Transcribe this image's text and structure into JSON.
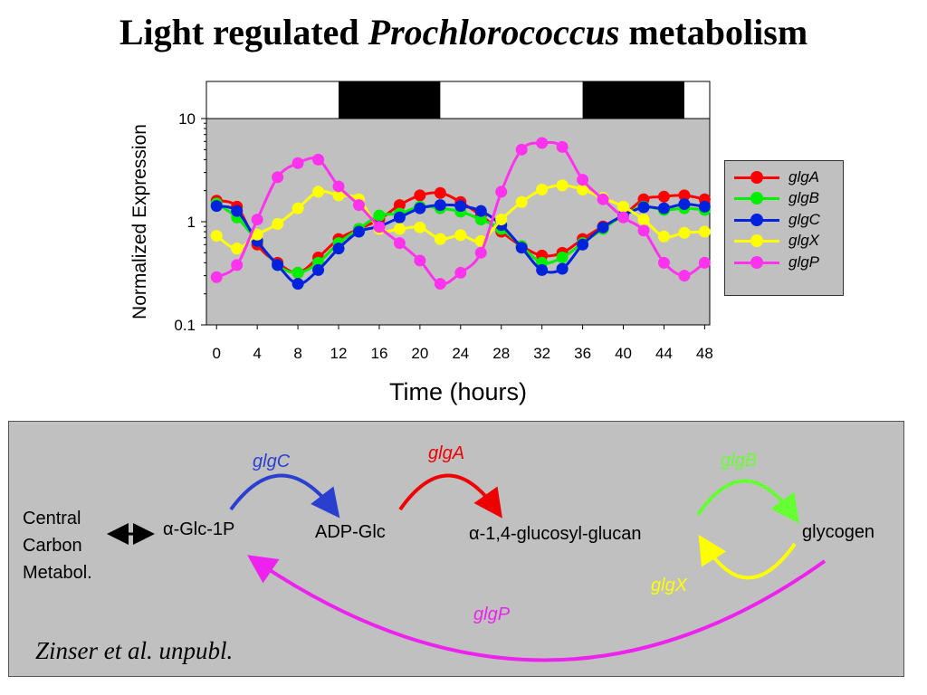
{
  "slide": {
    "title_prefix": "Light regulated ",
    "title_italic": "Prochlorococcus",
    "title_suffix": " metabolism",
    "citation": "Zinser et al. unpubl."
  },
  "chart_data": {
    "type": "line",
    "xlabel": "Time (hours)",
    "ylabel": "Normalized Expression",
    "yscale": "log",
    "ylim": [
      0.1,
      10
    ],
    "xlim": [
      -1,
      48.5
    ],
    "xticks": [
      "0",
      "4",
      "8",
      "12",
      "16",
      "20",
      "24",
      "28",
      "32",
      "36",
      "40",
      "44",
      "48"
    ],
    "yticks": [
      "0.1",
      "1",
      "10"
    ],
    "light_dark_bar": {
      "dark_intervals": [
        [
          12,
          22
        ],
        [
          36,
          46
        ]
      ]
    },
    "legend_position": "right",
    "x": [
      0,
      2,
      4,
      6,
      8,
      10,
      12,
      14,
      16,
      18,
      20,
      22,
      24,
      26,
      28,
      30,
      32,
      34,
      36,
      38,
      40,
      42,
      44,
      46,
      48
    ],
    "series": [
      {
        "name": "glgA",
        "color": "#ff0000",
        "values": [
          1.6,
          1.4,
          0.6,
          0.4,
          0.32,
          0.45,
          0.68,
          0.85,
          1.05,
          1.45,
          1.8,
          1.9,
          1.55,
          1.15,
          0.8,
          0.58,
          0.47,
          0.5,
          0.68,
          0.9,
          1.15,
          1.65,
          1.75,
          1.8,
          1.65
        ]
      },
      {
        "name": "glgB",
        "color": "#00ee00",
        "values": [
          1.5,
          1.1,
          0.65,
          0.38,
          0.32,
          0.4,
          0.62,
          0.85,
          1.15,
          1.2,
          1.4,
          1.35,
          1.25,
          1.05,
          0.85,
          0.58,
          0.4,
          0.45,
          0.62,
          0.85,
          1.15,
          1.4,
          1.3,
          1.35,
          1.3
        ]
      },
      {
        "name": "glgC",
        "color": "#0022dd",
        "values": [
          1.42,
          1.27,
          0.65,
          0.38,
          0.25,
          0.34,
          0.55,
          0.8,
          0.9,
          1.1,
          1.35,
          1.45,
          1.42,
          1.27,
          0.93,
          0.56,
          0.34,
          0.35,
          0.6,
          0.88,
          1.15,
          1.38,
          1.35,
          1.48,
          1.4
        ]
      },
      {
        "name": "glgX",
        "color": "#ffff00",
        "values": [
          0.73,
          0.55,
          0.75,
          0.95,
          1.35,
          1.95,
          1.8,
          1.65,
          0.85,
          0.85,
          0.88,
          0.68,
          0.74,
          0.65,
          1.05,
          1.55,
          2.05,
          2.25,
          2.05,
          1.7,
          1.4,
          1.05,
          0.72,
          0.78,
          0.8
        ]
      },
      {
        "name": "glgP",
        "color": "#ff33ee",
        "values": [
          0.29,
          0.38,
          1.05,
          2.7,
          3.7,
          4.0,
          2.2,
          1.45,
          0.89,
          0.62,
          0.42,
          0.25,
          0.32,
          0.5,
          1.95,
          5.0,
          5.8,
          5.3,
          2.55,
          1.65,
          1.1,
          0.82,
          0.4,
          0.3,
          0.4
        ]
      }
    ]
  },
  "pathway": {
    "nodes": {
      "central_line1": "Central",
      "central_line2": "Carbon",
      "central_line3": "Metabol.",
      "glc1p_alpha": "α",
      "glc1p": "-Glc-1P",
      "adpglc": "ADP-Glc",
      "glucan_alpha": "α",
      "glucan": "-1,4-glucosyl-glucan",
      "glycogen": "glycogen"
    },
    "genes": {
      "glgC": "glgC",
      "glgA": "glgA",
      "glgB": "glgB",
      "glgX": "glgX",
      "glgP": "glgP"
    },
    "colors": {
      "glgC": "#2a3fd0",
      "glgA": "#ee0000",
      "glgB": "#66ff33",
      "glgX": "#ffff00",
      "glgP": "#ee22ee"
    }
  }
}
